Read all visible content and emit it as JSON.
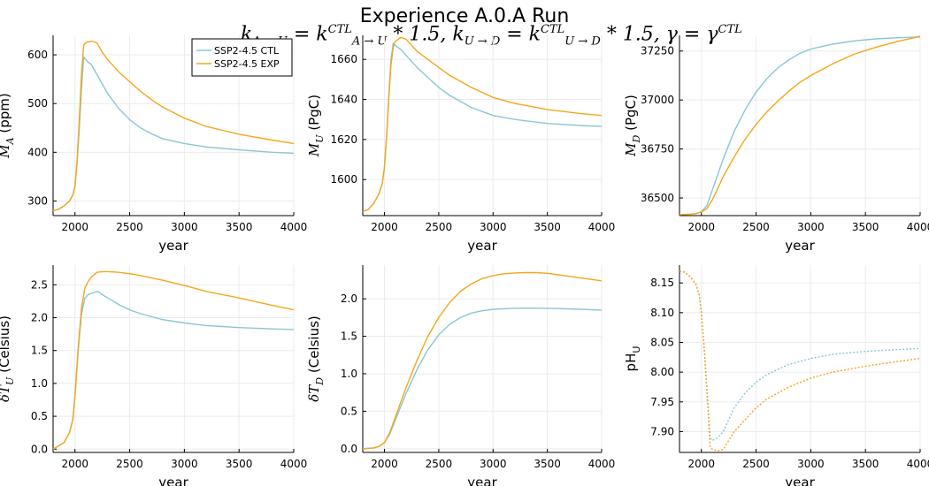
{
  "title": "Experience A.0.A Run",
  "formula_parts": {
    "k1": "k",
    "k1_sub": "A → U",
    "eq1": " = k",
    "k1r_sup": "CTL",
    "k1r_sub": "A → U",
    "mult1": " * 1.5, k",
    "k2_sub": "U → D",
    "eq2": " = k",
    "k2r_sup": "CTL",
    "k2r_sub": "U → D",
    "mult2": " * 1.5, γ = γ",
    "g_sup": "CTL"
  },
  "colors": {
    "ctl": "#87c6d6",
    "exp": "#f2a71b",
    "grid": "#ebebeb",
    "axis": "#000000"
  },
  "chart_data": [
    {
      "type": "line",
      "xlabel": "year",
      "ylabel_main": "M",
      "ylabel_sub": "A",
      "ylabel_unit": " (ppm)",
      "xlim": [
        1800,
        4000
      ],
      "ylim": [
        270,
        640
      ],
      "xticks": [
        2000,
        2500,
        3000,
        3500,
        4000
      ],
      "yticks": [
        300,
        400,
        500,
        600
      ],
      "ytick_labels": [
        "300",
        "400",
        "500",
        "600"
      ],
      "legend": {
        "position": "top-right",
        "entries": [
          "SSP2-4.5 CTL",
          "SSP2-4.5 EXP"
        ]
      },
      "series": [
        {
          "name": "SSP2-4.5 CTL",
          "style": "solid",
          "x": [
            1800,
            1850,
            1900,
            1950,
            1980,
            2000,
            2020,
            2040,
            2060,
            2080,
            2100,
            2120,
            2150,
            2200,
            2300,
            2400,
            2500,
            2600,
            2700,
            2800,
            3000,
            3200,
            3500,
            3800,
            4000
          ],
          "y": [
            280,
            283,
            290,
            300,
            312,
            330,
            380,
            450,
            530,
            595,
            590,
            585,
            580,
            560,
            520,
            490,
            467,
            450,
            438,
            428,
            418,
            411,
            405,
            400,
            398
          ]
        },
        {
          "name": "SSP2-4.5 EXP",
          "style": "solid",
          "x": [
            1800,
            1850,
            1900,
            1950,
            1980,
            2000,
            2020,
            2040,
            2060,
            2080,
            2100,
            2150,
            2200,
            2250,
            2300,
            2400,
            2500,
            2600,
            2700,
            2800,
            3000,
            3200,
            3500,
            3800,
            4000
          ],
          "y": [
            280,
            283,
            290,
            300,
            312,
            330,
            385,
            470,
            560,
            620,
            625,
            628,
            625,
            605,
            590,
            565,
            545,
            525,
            508,
            493,
            470,
            453,
            437,
            425,
            418
          ]
        }
      ]
    },
    {
      "type": "line",
      "xlabel": "year",
      "ylabel_main": "M",
      "ylabel_sub": "U",
      "ylabel_unit": " (PgC)",
      "xlim": [
        1800,
        4000
      ],
      "ylim": [
        1582,
        1672
      ],
      "xticks": [
        2000,
        2500,
        3000,
        3500,
        4000
      ],
      "yticks": [
        1600,
        1620,
        1640,
        1660
      ],
      "ytick_labels": [
        "1600",
        "1620",
        "1640",
        "1660"
      ],
      "series": [
        {
          "name": "SSP2-4.5 CTL",
          "style": "solid",
          "x": [
            1800,
            1850,
            1900,
            1950,
            1980,
            2000,
            2020,
            2040,
            2060,
            2080,
            2100,
            2150,
            2200,
            2300,
            2400,
            2500,
            2600,
            2700,
            2800,
            3000,
            3200,
            3500,
            3800,
            4000
          ],
          "y": [
            1584,
            1585,
            1588,
            1593,
            1598,
            1606,
            1622,
            1642,
            1660,
            1668,
            1667,
            1665,
            1662,
            1656,
            1651,
            1646,
            1642,
            1639,
            1636,
            1632,
            1630,
            1628,
            1627,
            1626.5
          ]
        },
        {
          "name": "SSP2-4.5 EXP",
          "style": "solid",
          "x": [
            1800,
            1850,
            1900,
            1950,
            1980,
            2000,
            2020,
            2040,
            2060,
            2080,
            2100,
            2150,
            2200,
            2250,
            2300,
            2400,
            2500,
            2600,
            2700,
            2800,
            3000,
            3200,
            3500,
            3800,
            4000
          ],
          "y": [
            1584,
            1585,
            1588,
            1593,
            1598,
            1606,
            1622,
            1641,
            1657,
            1666,
            1669,
            1671,
            1670,
            1667,
            1664,
            1660,
            1656,
            1652,
            1649,
            1646,
            1641,
            1638,
            1635,
            1633,
            1632
          ]
        }
      ]
    },
    {
      "type": "line",
      "xlabel": "year",
      "ylabel_main": "M",
      "ylabel_sub": "D",
      "ylabel_unit": " (PgC)",
      "xlim": [
        1800,
        4000
      ],
      "ylim": [
        36410,
        37330
      ],
      "xticks": [
        2000,
        2500,
        3000,
        3500,
        4000
      ],
      "yticks": [
        36500,
        36750,
        37000,
        37250
      ],
      "ytick_labels": [
        "36500",
        "36750",
        "37000",
        "37250"
      ],
      "series": [
        {
          "name": "SSP2-4.5 CTL",
          "style": "solid",
          "x": [
            1800,
            1900,
            1950,
            2000,
            2050,
            2100,
            2150,
            2200,
            2300,
            2400,
            2500,
            2600,
            2700,
            2800,
            2900,
            3000,
            3200,
            3400,
            3600,
            3800,
            4000
          ],
          "y": [
            36415,
            36417,
            36420,
            36430,
            36460,
            36540,
            36620,
            36700,
            36840,
            36950,
            37040,
            37110,
            37165,
            37205,
            37238,
            37260,
            37285,
            37302,
            37312,
            37318,
            37322
          ]
        },
        {
          "name": "SSP2-4.5 EXP",
          "style": "solid",
          "x": [
            1800,
            1900,
            1950,
            2000,
            2050,
            2100,
            2150,
            2200,
            2300,
            2400,
            2500,
            2600,
            2700,
            2800,
            2900,
            3000,
            3200,
            3400,
            3600,
            3800,
            4000
          ],
          "y": [
            36415,
            36417,
            36420,
            36428,
            36445,
            36490,
            36550,
            36610,
            36710,
            36800,
            36875,
            36940,
            36995,
            37045,
            37090,
            37125,
            37185,
            37235,
            37270,
            37300,
            37325
          ]
        }
      ]
    },
    {
      "type": "line",
      "xlabel": "year",
      "ylabel_main": "δT",
      "ylabel_sub": "U",
      "ylabel_unit": " (Celsius)",
      "xlim": [
        1800,
        4000
      ],
      "ylim": [
        -0.05,
        2.8
      ],
      "xticks": [
        2000,
        2500,
        3000,
        3500,
        4000
      ],
      "yticks": [
        0.0,
        0.5,
        1.0,
        1.5,
        2.0,
        2.5
      ],
      "ytick_labels": [
        "0.0",
        "0.5",
        "1.0",
        "1.5",
        "2.0",
        "2.5"
      ],
      "series": [
        {
          "name": "SSP2-4.5 CTL",
          "style": "solid",
          "x": [
            1800,
            1850,
            1900,
            1950,
            1980,
            2000,
            2030,
            2060,
            2090,
            2120,
            2150,
            2200,
            2220,
            2250,
            2300,
            2400,
            2500,
            2600,
            2800,
            3000,
            3200,
            3500,
            3800,
            4000
          ],
          "y": [
            0,
            0.05,
            0.1,
            0.25,
            0.45,
            0.8,
            1.5,
            2.05,
            2.3,
            2.35,
            2.37,
            2.4,
            2.39,
            2.35,
            2.3,
            2.2,
            2.12,
            2.06,
            1.97,
            1.92,
            1.88,
            1.85,
            1.83,
            1.82
          ]
        },
        {
          "name": "SSP2-4.5 EXP",
          "style": "solid",
          "x": [
            1800,
            1850,
            1900,
            1950,
            1980,
            2000,
            2030,
            2060,
            2090,
            2120,
            2150,
            2200,
            2250,
            2300,
            2400,
            2500,
            2600,
            2800,
            3000,
            3200,
            3500,
            3800,
            4000
          ],
          "y": [
            0,
            0.05,
            0.1,
            0.25,
            0.45,
            0.8,
            1.55,
            2.15,
            2.45,
            2.55,
            2.62,
            2.69,
            2.7,
            2.7,
            2.69,
            2.67,
            2.64,
            2.57,
            2.49,
            2.4,
            2.3,
            2.19,
            2.12
          ]
        }
      ]
    },
    {
      "type": "line",
      "xlabel": "year",
      "ylabel_main": "δT",
      "ylabel_sub": "D",
      "ylabel_unit": " (Celsius)",
      "xlim": [
        1800,
        4000
      ],
      "ylim": [
        -0.05,
        2.45
      ],
      "xticks": [
        2000,
        2500,
        3000,
        3500,
        4000
      ],
      "yticks": [
        0.0,
        0.5,
        1.0,
        1.5,
        2.0
      ],
      "ytick_labels": [
        "0.0",
        "0.5",
        "1.0",
        "1.5",
        "2.0"
      ],
      "series": [
        {
          "name": "SSP2-4.5 CTL",
          "style": "solid",
          "x": [
            1800,
            1900,
            1950,
            2000,
            2050,
            2100,
            2200,
            2300,
            2400,
            2500,
            2600,
            2700,
            2800,
            2900,
            3000,
            3200,
            3400,
            3600,
            3800,
            4000
          ],
          "y": [
            0,
            0.01,
            0.03,
            0.08,
            0.2,
            0.38,
            0.74,
            1.06,
            1.32,
            1.52,
            1.66,
            1.75,
            1.81,
            1.84,
            1.86,
            1.875,
            1.875,
            1.87,
            1.86,
            1.85
          ]
        },
        {
          "name": "SSP2-4.5 EXP",
          "style": "solid",
          "x": [
            1800,
            1900,
            1950,
            2000,
            2050,
            2100,
            2200,
            2300,
            2400,
            2500,
            2600,
            2700,
            2800,
            2900,
            3000,
            3100,
            3200,
            3300,
            3400,
            3500,
            3600,
            3800,
            4000
          ],
          "y": [
            0,
            0.01,
            0.03,
            0.08,
            0.22,
            0.42,
            0.82,
            1.18,
            1.5,
            1.75,
            1.95,
            2.1,
            2.2,
            2.27,
            2.31,
            2.335,
            2.345,
            2.35,
            2.35,
            2.34,
            2.32,
            2.28,
            2.24
          ]
        }
      ]
    },
    {
      "type": "line",
      "xlabel": "year",
      "ylabel_main": "pH",
      "ylabel_sub": "U",
      "ylabel_unit": "",
      "xlim": [
        1800,
        4000
      ],
      "ylim": [
        7.865,
        8.18
      ],
      "xticks": [
        2000,
        2500,
        3000,
        3500,
        4000
      ],
      "yticks": [
        7.9,
        7.95,
        8.0,
        8.05,
        8.1,
        8.15
      ],
      "ytick_labels": [
        "7.90",
        "7.95",
        "8.00",
        "8.05",
        "8.10",
        "8.15"
      ],
      "series": [
        {
          "name": "SSP2-4.5 CTL",
          "style": "dotted",
          "x": [
            1800,
            1850,
            1900,
            1950,
            1980,
            2000,
            2030,
            2060,
            2080,
            2100,
            2150,
            2200,
            2250,
            2300,
            2400,
            2500,
            2600,
            2800,
            3000,
            3200,
            3500,
            3800,
            4000
          ],
          "y": [
            8.17,
            8.168,
            8.16,
            8.148,
            8.13,
            8.1,
            8.03,
            7.95,
            7.89,
            7.885,
            7.89,
            7.9,
            7.92,
            7.94,
            7.965,
            7.983,
            7.996,
            8.013,
            8.023,
            8.03,
            8.035,
            8.038,
            8.04
          ]
        },
        {
          "name": "SSP2-4.5 EXP",
          "style": "dotted",
          "x": [
            1800,
            1850,
            1900,
            1950,
            1980,
            2000,
            2030,
            2060,
            2080,
            2100,
            2150,
            2200,
            2250,
            2300,
            2400,
            2500,
            2600,
            2800,
            3000,
            3200,
            3500,
            3800,
            4000
          ],
          "y": [
            8.17,
            8.168,
            8.16,
            8.148,
            8.13,
            8.1,
            8.03,
            7.94,
            7.875,
            7.87,
            7.868,
            7.87,
            7.885,
            7.9,
            7.92,
            7.94,
            7.955,
            7.975,
            7.99,
            8.0,
            8.01,
            8.018,
            8.023
          ]
        }
      ]
    }
  ]
}
